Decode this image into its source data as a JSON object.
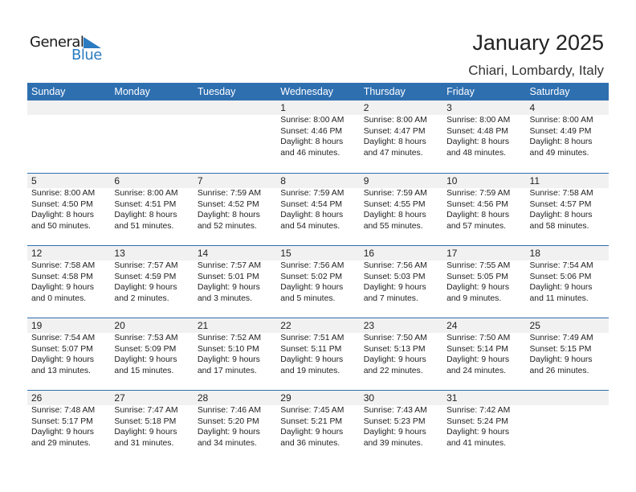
{
  "logo": {
    "general": "General",
    "blue": "Blue",
    "accent": "#2a7bc0"
  },
  "header": {
    "title": "January 2025",
    "location": "Chiari, Lombardy, Italy"
  },
  "colors": {
    "header_bg": "#2e6fb0",
    "date_strip": "#f1f1f1"
  },
  "weekdays": [
    "Sunday",
    "Monday",
    "Tuesday",
    "Wednesday",
    "Thursday",
    "Friday",
    "Saturday"
  ],
  "weeks": [
    [
      null,
      null,
      null,
      {
        "day": "1",
        "sunrise": "Sunrise: 8:00 AM",
        "sunset": "Sunset: 4:46 PM",
        "daylight": "Daylight: 8 hours",
        "minutes": "and 46 minutes."
      },
      {
        "day": "2",
        "sunrise": "Sunrise: 8:00 AM",
        "sunset": "Sunset: 4:47 PM",
        "daylight": "Daylight: 8 hours",
        "minutes": "and 47 minutes."
      },
      {
        "day": "3",
        "sunrise": "Sunrise: 8:00 AM",
        "sunset": "Sunset: 4:48 PM",
        "daylight": "Daylight: 8 hours",
        "minutes": "and 48 minutes."
      },
      {
        "day": "4",
        "sunrise": "Sunrise: 8:00 AM",
        "sunset": "Sunset: 4:49 PM",
        "daylight": "Daylight: 8 hours",
        "minutes": "and 49 minutes."
      }
    ],
    [
      {
        "day": "5",
        "sunrise": "Sunrise: 8:00 AM",
        "sunset": "Sunset: 4:50 PM",
        "daylight": "Daylight: 8 hours",
        "minutes": "and 50 minutes."
      },
      {
        "day": "6",
        "sunrise": "Sunrise: 8:00 AM",
        "sunset": "Sunset: 4:51 PM",
        "daylight": "Daylight: 8 hours",
        "minutes": "and 51 minutes."
      },
      {
        "day": "7",
        "sunrise": "Sunrise: 7:59 AM",
        "sunset": "Sunset: 4:52 PM",
        "daylight": "Daylight: 8 hours",
        "minutes": "and 52 minutes."
      },
      {
        "day": "8",
        "sunrise": "Sunrise: 7:59 AM",
        "sunset": "Sunset: 4:54 PM",
        "daylight": "Daylight: 8 hours",
        "minutes": "and 54 minutes."
      },
      {
        "day": "9",
        "sunrise": "Sunrise: 7:59 AM",
        "sunset": "Sunset: 4:55 PM",
        "daylight": "Daylight: 8 hours",
        "minutes": "and 55 minutes."
      },
      {
        "day": "10",
        "sunrise": "Sunrise: 7:59 AM",
        "sunset": "Sunset: 4:56 PM",
        "daylight": "Daylight: 8 hours",
        "minutes": "and 57 minutes."
      },
      {
        "day": "11",
        "sunrise": "Sunrise: 7:58 AM",
        "sunset": "Sunset: 4:57 PM",
        "daylight": "Daylight: 8 hours",
        "minutes": "and 58 minutes."
      }
    ],
    [
      {
        "day": "12",
        "sunrise": "Sunrise: 7:58 AM",
        "sunset": "Sunset: 4:58 PM",
        "daylight": "Daylight: 9 hours",
        "minutes": "and 0 minutes."
      },
      {
        "day": "13",
        "sunrise": "Sunrise: 7:57 AM",
        "sunset": "Sunset: 4:59 PM",
        "daylight": "Daylight: 9 hours",
        "minutes": "and 2 minutes."
      },
      {
        "day": "14",
        "sunrise": "Sunrise: 7:57 AM",
        "sunset": "Sunset: 5:01 PM",
        "daylight": "Daylight: 9 hours",
        "minutes": "and 3 minutes."
      },
      {
        "day": "15",
        "sunrise": "Sunrise: 7:56 AM",
        "sunset": "Sunset: 5:02 PM",
        "daylight": "Daylight: 9 hours",
        "minutes": "and 5 minutes."
      },
      {
        "day": "16",
        "sunrise": "Sunrise: 7:56 AM",
        "sunset": "Sunset: 5:03 PM",
        "daylight": "Daylight: 9 hours",
        "minutes": "and 7 minutes."
      },
      {
        "day": "17",
        "sunrise": "Sunrise: 7:55 AM",
        "sunset": "Sunset: 5:05 PM",
        "daylight": "Daylight: 9 hours",
        "minutes": "and 9 minutes."
      },
      {
        "day": "18",
        "sunrise": "Sunrise: 7:54 AM",
        "sunset": "Sunset: 5:06 PM",
        "daylight": "Daylight: 9 hours",
        "minutes": "and 11 minutes."
      }
    ],
    [
      {
        "day": "19",
        "sunrise": "Sunrise: 7:54 AM",
        "sunset": "Sunset: 5:07 PM",
        "daylight": "Daylight: 9 hours",
        "minutes": "and 13 minutes."
      },
      {
        "day": "20",
        "sunrise": "Sunrise: 7:53 AM",
        "sunset": "Sunset: 5:09 PM",
        "daylight": "Daylight: 9 hours",
        "minutes": "and 15 minutes."
      },
      {
        "day": "21",
        "sunrise": "Sunrise: 7:52 AM",
        "sunset": "Sunset: 5:10 PM",
        "daylight": "Daylight: 9 hours",
        "minutes": "and 17 minutes."
      },
      {
        "day": "22",
        "sunrise": "Sunrise: 7:51 AM",
        "sunset": "Sunset: 5:11 PM",
        "daylight": "Daylight: 9 hours",
        "minutes": "and 19 minutes."
      },
      {
        "day": "23",
        "sunrise": "Sunrise: 7:50 AM",
        "sunset": "Sunset: 5:13 PM",
        "daylight": "Daylight: 9 hours",
        "minutes": "and 22 minutes."
      },
      {
        "day": "24",
        "sunrise": "Sunrise: 7:50 AM",
        "sunset": "Sunset: 5:14 PM",
        "daylight": "Daylight: 9 hours",
        "minutes": "and 24 minutes."
      },
      {
        "day": "25",
        "sunrise": "Sunrise: 7:49 AM",
        "sunset": "Sunset: 5:15 PM",
        "daylight": "Daylight: 9 hours",
        "minutes": "and 26 minutes."
      }
    ],
    [
      {
        "day": "26",
        "sunrise": "Sunrise: 7:48 AM",
        "sunset": "Sunset: 5:17 PM",
        "daylight": "Daylight: 9 hours",
        "minutes": "and 29 minutes."
      },
      {
        "day": "27",
        "sunrise": "Sunrise: 7:47 AM",
        "sunset": "Sunset: 5:18 PM",
        "daylight": "Daylight: 9 hours",
        "minutes": "and 31 minutes."
      },
      {
        "day": "28",
        "sunrise": "Sunrise: 7:46 AM",
        "sunset": "Sunset: 5:20 PM",
        "daylight": "Daylight: 9 hours",
        "minutes": "and 34 minutes."
      },
      {
        "day": "29",
        "sunrise": "Sunrise: 7:45 AM",
        "sunset": "Sunset: 5:21 PM",
        "daylight": "Daylight: 9 hours",
        "minutes": "and 36 minutes."
      },
      {
        "day": "30",
        "sunrise": "Sunrise: 7:43 AM",
        "sunset": "Sunset: 5:23 PM",
        "daylight": "Daylight: 9 hours",
        "minutes": "and 39 minutes."
      },
      {
        "day": "31",
        "sunrise": "Sunrise: 7:42 AM",
        "sunset": "Sunset: 5:24 PM",
        "daylight": "Daylight: 9 hours",
        "minutes": "and 41 minutes."
      },
      null
    ]
  ]
}
